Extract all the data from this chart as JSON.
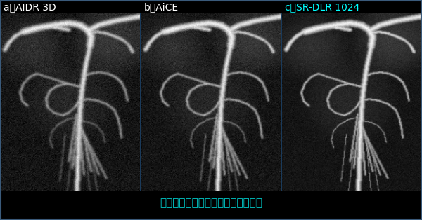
{
  "background_color": "#000000",
  "border_color": "#3a5a7a",
  "panel_labels": [
    "a：AIDR 3D",
    "b：AiCE",
    "c：SR-DLR 1024"
  ],
  "label_colors": [
    "#ffffff",
    "#ffffff",
    "#00ffff"
  ],
  "caption": "高精細な手術支援ツールとして貢献",
  "caption_color": "#00cccc",
  "caption_fontsize": 11,
  "label_fontsize": 10,
  "fig_width": 6.0,
  "fig_height": 3.14,
  "dpi": 100
}
